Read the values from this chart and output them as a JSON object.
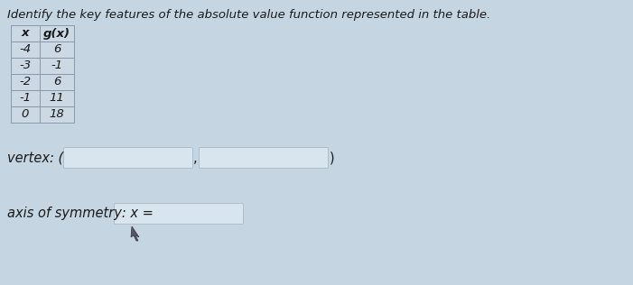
{
  "title": "Identify the key features of the absolute value function represented in the table.",
  "table_headers": [
    "x",
    "g(x)"
  ],
  "table_data": [
    [
      "-4",
      "6"
    ],
    [
      "-3",
      "-1"
    ],
    [
      "-2",
      "6"
    ],
    [
      "-1",
      "11"
    ],
    [
      "0",
      "18"
    ]
  ],
  "vertex_label": "vertex: (",
  "vertex_close": ")",
  "axis_label": "axis of symmetry: x =",
  "bg_color": "#c5d5e2",
  "table_bg": "#ccd9e4",
  "box_fill": "#d8e4ee",
  "box_border": "#b0bec8",
  "text_color": "#1a1a1a",
  "title_font_size": 9.5,
  "label_font_size": 10.5,
  "table_font_size": 9.5
}
